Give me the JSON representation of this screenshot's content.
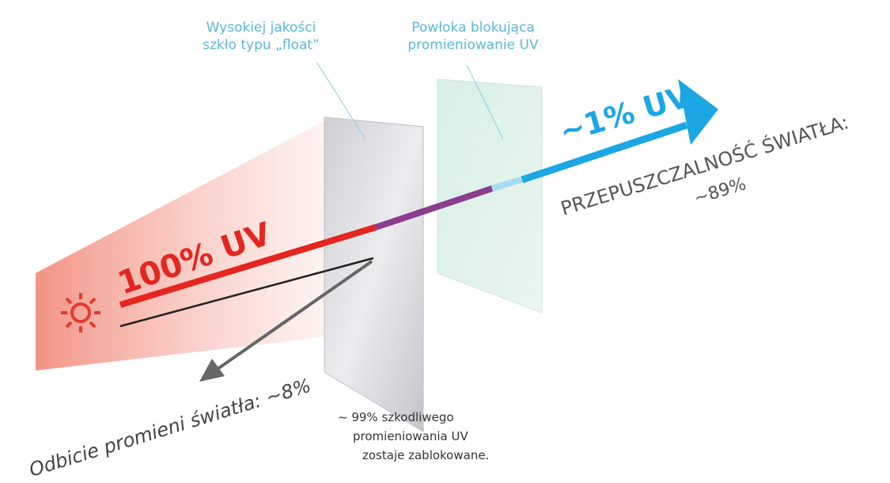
{
  "labels": {
    "float_glass": {
      "lines": [
        "Wysokiej jakości",
        "szkło typu „float”"
      ]
    },
    "uv_coating": {
      "lines": [
        "Powłoka blokująca",
        "promieniowanie UV"
      ]
    },
    "uv_in": "100% UV",
    "uv_out": "~1% UV",
    "transmission": {
      "title": "PRZEPUSZCZALNOŚĆ ŚWIATŁA:",
      "value": "~89%"
    },
    "reflection": "Odbicie promieni światła: ~8%",
    "blocked": {
      "lines": [
        "~ 99% szkodliwego",
        "promieniowania UV",
        "zostaje zablokowane."
      ]
    }
  }
}
